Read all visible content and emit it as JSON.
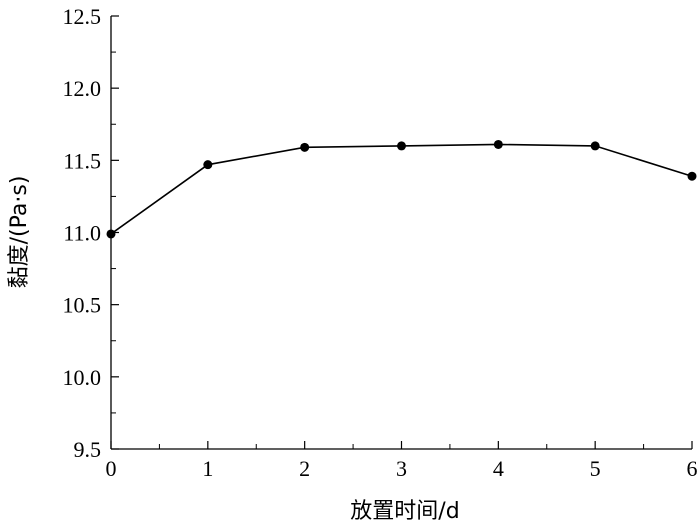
{
  "chart_data": {
    "type": "line",
    "title": "",
    "xlabel": "放置时间/d",
    "ylabel": "黏度/(Pa·s)",
    "xlim": [
      0,
      6
    ],
    "ylim": [
      9.5,
      12.5
    ],
    "x_ticks": [
      0,
      1,
      2,
      3,
      4,
      5,
      6
    ],
    "x_tick_labels": [
      "0",
      "1",
      "2",
      "3",
      "4",
      "5",
      "6"
    ],
    "y_ticks": [
      9.5,
      10.0,
      10.5,
      11.0,
      11.5,
      12.0,
      12.5
    ],
    "y_tick_labels": [
      "9.5",
      "10.0",
      "10.5",
      "11.0",
      "11.5",
      "12.0",
      "12.5"
    ],
    "grid": false,
    "series": [
      {
        "x": [
          0,
          1,
          2,
          3,
          4,
          5,
          6
        ],
        "values": [
          10.99,
          11.47,
          11.59,
          11.6,
          11.61,
          11.6,
          11.39
        ],
        "color": "#000000",
        "marker": "circle"
      }
    ]
  }
}
